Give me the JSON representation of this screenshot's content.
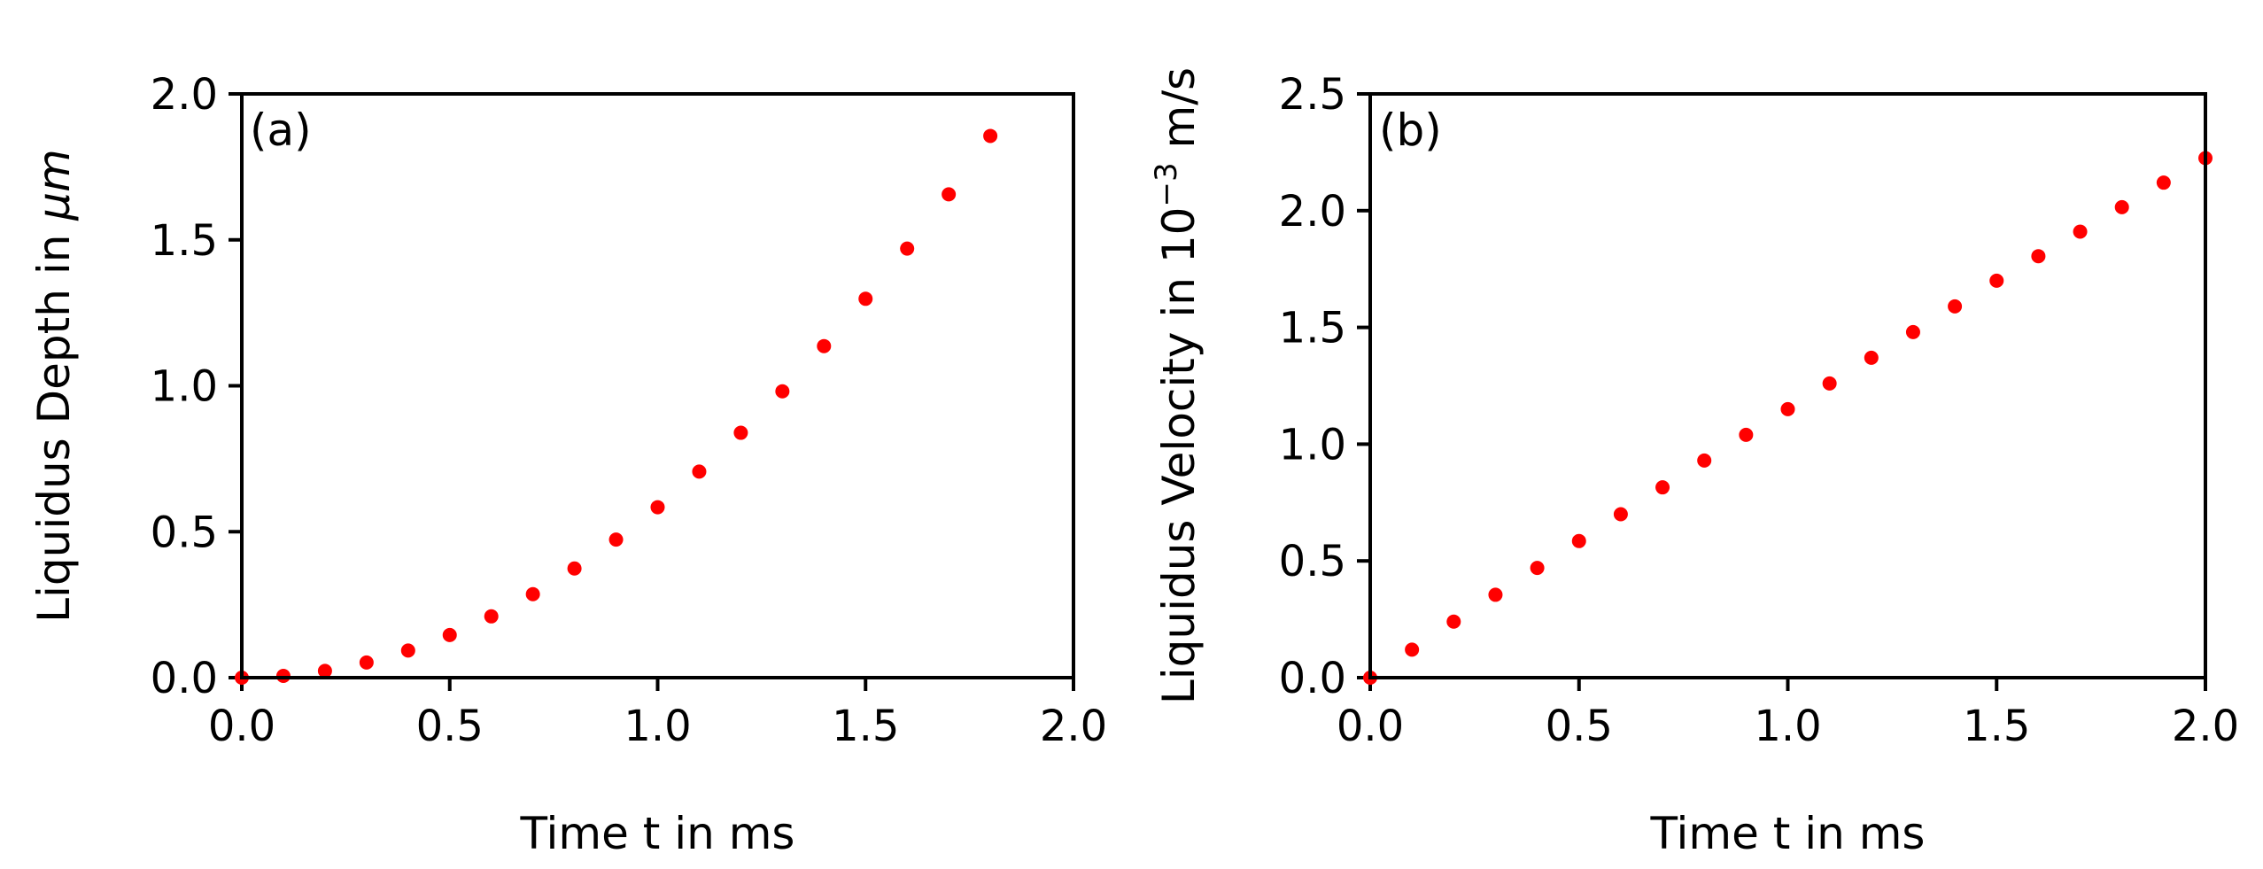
{
  "chart_data": [
    {
      "type": "scatter",
      "panel_label": "(a)",
      "xlabel": "Time t in ms",
      "ylabel_prefix": "Liquidus Depth in ",
      "ylabel_unit": "μm",
      "xlim": [
        0,
        2.0
      ],
      "ylim": [
        0,
        2.0
      ],
      "xticks": [
        0,
        0.5,
        1.0,
        1.5,
        2.0
      ],
      "xtick_labels": [
        "0.0",
        "0.5",
        "1.0",
        "1.5",
        "2.0"
      ],
      "yticks": [
        0,
        0.5,
        1.0,
        1.5,
        2.0
      ],
      "ytick_labels": [
        "0.0",
        "0.5",
        "1.0",
        "1.5",
        "2.0"
      ],
      "marker_color": "#ff0000",
      "x": [
        0.0,
        0.1,
        0.2,
        0.3,
        0.4,
        0.5,
        0.6,
        0.7,
        0.8,
        0.9,
        1.0,
        1.1,
        1.2,
        1.3,
        1.4,
        1.5,
        1.6,
        1.7,
        1.8
      ],
      "y": [
        0.0,
        0.006,
        0.023,
        0.052,
        0.093,
        0.146,
        0.21,
        0.286,
        0.374,
        0.473,
        0.584,
        0.706,
        0.839,
        0.981,
        1.136,
        1.298,
        1.47,
        1.656,
        1.856
      ]
    },
    {
      "type": "scatter",
      "panel_label": "(b)",
      "xlabel": "Time t in ms",
      "ylabel_prefix": "Liquidus Velocity in 10",
      "ylabel_exponent": "−3",
      "ylabel_suffix": " m/s",
      "xlim": [
        0,
        2.0
      ],
      "ylim": [
        0,
        2.5
      ],
      "xticks": [
        0,
        0.5,
        1.0,
        1.5,
        2.0
      ],
      "xtick_labels": [
        "0.0",
        "0.5",
        "1.0",
        "1.5",
        "2.0"
      ],
      "yticks": [
        0,
        0.5,
        1.0,
        1.5,
        2.0,
        2.5
      ],
      "ytick_labels": [
        "0.0",
        "0.5",
        "1.0",
        "1.5",
        "2.0",
        "2.5"
      ],
      "marker_color": "#ff0000",
      "x": [
        0.0,
        0.1,
        0.2,
        0.3,
        0.4,
        0.5,
        0.6,
        0.7,
        0.8,
        0.9,
        1.0,
        1.1,
        1.2,
        1.3,
        1.4,
        1.5,
        1.6,
        1.7,
        1.8,
        1.9,
        2.0
      ],
      "y": [
        0.0,
        0.12,
        0.24,
        0.355,
        0.47,
        0.585,
        0.7,
        0.815,
        0.93,
        1.04,
        1.15,
        1.26,
        1.37,
        1.48,
        1.59,
        1.7,
        1.805,
        1.91,
        2.015,
        2.12,
        2.225
      ]
    }
  ]
}
